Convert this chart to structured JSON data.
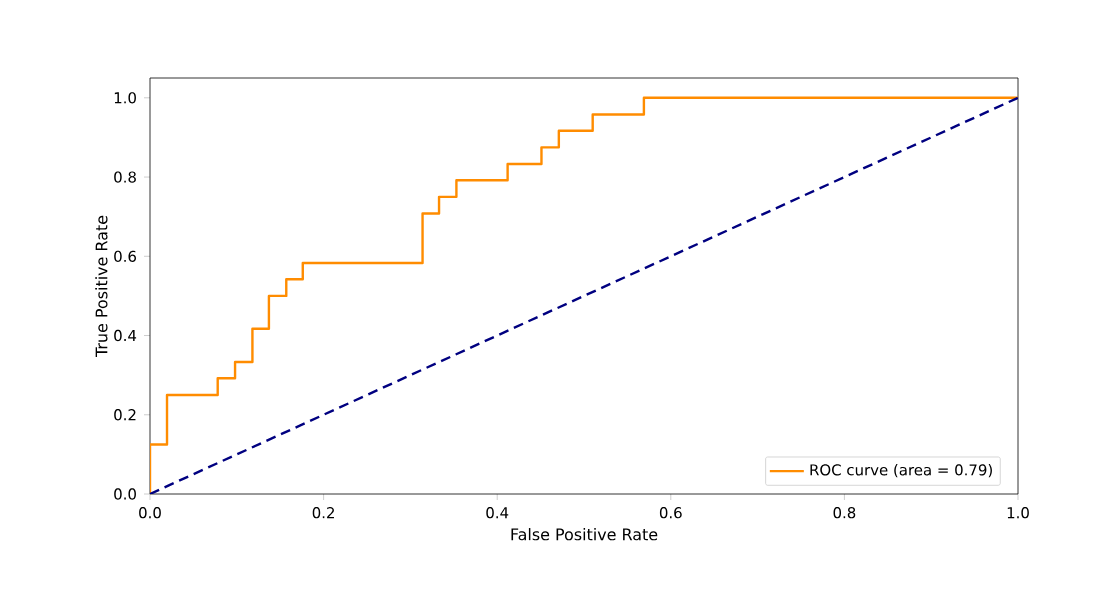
{
  "chart_data": {
    "type": "step",
    "xlabel": "False Positive Rate",
    "ylabel": "True Positive Rate",
    "xlim": [
      0,
      1
    ],
    "ylim": [
      0,
      1.05
    ],
    "xticks": [
      {
        "value": 0,
        "label": "0.0"
      },
      0.2,
      0.4,
      0.6,
      0.8,
      {
        "value": 1,
        "label": "1.0"
      }
    ],
    "yticks": [
      {
        "value": 0,
        "label": "0.0"
      },
      0.2,
      0.4,
      0.6,
      0.8,
      {
        "value": 1,
        "label": "1.0"
      }
    ],
    "legend": "bottom right",
    "grid": false,
    "series": [
      {
        "name": "ROC curve (area = 0.79)",
        "color": "#ff8c00",
        "line_style": "solid",
        "x": [
          0,
          0,
          0.0196,
          0.078,
          0.098,
          0.118,
          0.137,
          0.157,
          0.176,
          0.314,
          0.333,
          0.353,
          0.412,
          0.451,
          0.471,
          0.51,
          0.569,
          1
        ],
        "values": [
          0,
          0.125,
          0.25,
          0.292,
          0.333,
          0.417,
          0.5,
          0.542,
          0.583,
          0.708,
          0.75,
          0.792,
          0.833,
          0.875,
          0.917,
          0.958,
          1,
          1
        ]
      },
      {
        "type": "line",
        "color": "#000080",
        "line_style": "dashed",
        "x": [
          0,
          1
        ],
        "values": [
          0,
          1
        ]
      }
    ]
  }
}
